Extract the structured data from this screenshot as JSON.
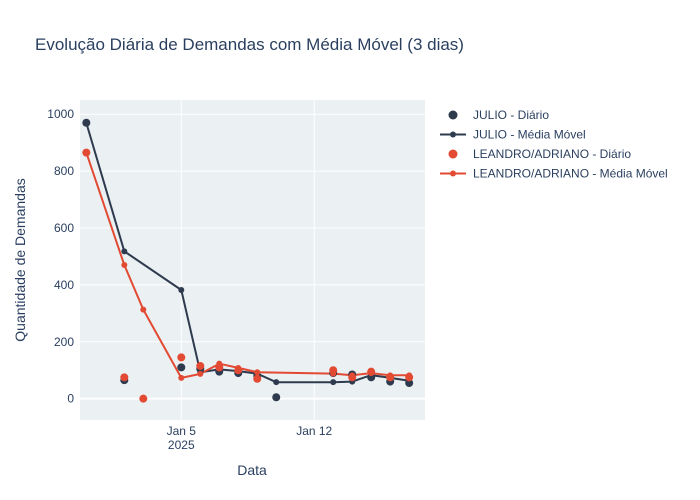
{
  "chart_data": {
    "type": "line",
    "title": "Evolução Diária de Demandas com Média Móvel (3 dias)",
    "xlabel": "Data",
    "ylabel": "Quantidade de Demandas",
    "x_ticks": [
      {
        "date": "2025-01-05",
        "label": "Jan 5",
        "sublabel": "2025"
      },
      {
        "date": "2025-01-12",
        "label": "Jan 12",
        "sublabel": ""
      }
    ],
    "y_ticks": [
      0,
      200,
      400,
      600,
      800,
      1000
    ],
    "xlim": [
      "2024-12-30T16:00",
      "2025-01-17T20:00"
    ],
    "ylim": [
      -75,
      1050
    ],
    "grid": true,
    "legend_position": "top-right",
    "series": [
      {
        "name": "JULIO - Diário",
        "kind": "markers",
        "color": "#2e3b4e",
        "points": [
          {
            "x": "2024-12-31",
            "y": 970
          },
          {
            "x": "2025-01-02",
            "y": 65
          },
          {
            "x": "2025-01-05",
            "y": 110
          },
          {
            "x": "2025-01-06",
            "y": 105
          },
          {
            "x": "2025-01-07",
            "y": 95
          },
          {
            "x": "2025-01-08",
            "y": 90
          },
          {
            "x": "2025-01-09",
            "y": 80
          },
          {
            "x": "2025-01-10",
            "y": 5
          },
          {
            "x": "2025-01-13",
            "y": 90
          },
          {
            "x": "2025-01-14",
            "y": 85
          },
          {
            "x": "2025-01-15",
            "y": 75
          },
          {
            "x": "2025-01-16",
            "y": 60
          },
          {
            "x": "2025-01-17",
            "y": 55
          }
        ]
      },
      {
        "name": "JULIO - Média Móvel",
        "kind": "lines+markers",
        "color": "#2e3b4e",
        "points": [
          {
            "x": "2024-12-31",
            "y": 970
          },
          {
            "x": "2025-01-02",
            "y": 518
          },
          {
            "x": "2025-01-05",
            "y": 382
          },
          {
            "x": "2025-01-06",
            "y": 93
          },
          {
            "x": "2025-01-07",
            "y": 103
          },
          {
            "x": "2025-01-08",
            "y": 97
          },
          {
            "x": "2025-01-09",
            "y": 88
          },
          {
            "x": "2025-01-10",
            "y": 58
          },
          {
            "x": "2025-01-13",
            "y": 58
          },
          {
            "x": "2025-01-14",
            "y": 60
          },
          {
            "x": "2025-01-15",
            "y": 83
          },
          {
            "x": "2025-01-16",
            "y": 73
          },
          {
            "x": "2025-01-17",
            "y": 63
          }
        ]
      },
      {
        "name": "LEANDRO/ADRIANO - Diário",
        "kind": "markers",
        "color": "#e24a33",
        "points": [
          {
            "x": "2024-12-31",
            "y": 865
          },
          {
            "x": "2025-01-02",
            "y": 75
          },
          {
            "x": "2025-01-03",
            "y": 0
          },
          {
            "x": "2025-01-05",
            "y": 145
          },
          {
            "x": "2025-01-06",
            "y": 115
          },
          {
            "x": "2025-01-07",
            "y": 110
          },
          {
            "x": "2025-01-08",
            "y": 100
          },
          {
            "x": "2025-01-09",
            "y": 70
          },
          {
            "x": "2025-01-13",
            "y": 100
          },
          {
            "x": "2025-01-14",
            "y": 75
          },
          {
            "x": "2025-01-15",
            "y": 95
          },
          {
            "x": "2025-01-16",
            "y": 75
          },
          {
            "x": "2025-01-17",
            "y": 75
          }
        ]
      },
      {
        "name": "LEANDRO/ADRIANO - Média Móvel",
        "kind": "lines+markers",
        "color": "#e24a33",
        "points": [
          {
            "x": "2024-12-31",
            "y": 865
          },
          {
            "x": "2025-01-02",
            "y": 470
          },
          {
            "x": "2025-01-03",
            "y": 313
          },
          {
            "x": "2025-01-05",
            "y": 73
          },
          {
            "x": "2025-01-06",
            "y": 87
          },
          {
            "x": "2025-01-07",
            "y": 123
          },
          {
            "x": "2025-01-08",
            "y": 108
          },
          {
            "x": "2025-01-09",
            "y": 93
          },
          {
            "x": "2025-01-13",
            "y": 88
          },
          {
            "x": "2025-01-14",
            "y": 82
          },
          {
            "x": "2025-01-15",
            "y": 90
          },
          {
            "x": "2025-01-16",
            "y": 82
          },
          {
            "x": "2025-01-17",
            "y": 82
          }
        ]
      }
    ]
  }
}
